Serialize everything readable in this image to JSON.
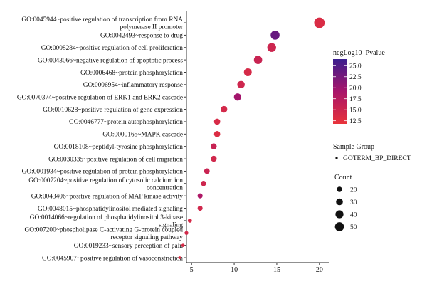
{
  "chart_data": {
    "type": "scatter",
    "xlabel": "",
    "ylabel": "",
    "xlim": [
      4.4,
      21.1
    ],
    "xticks": [
      5,
      10,
      15,
      20
    ],
    "terms": [
      {
        "label": [
          "GO:0045944~positive regulation of transcription from RNA",
          "polymerase II promoter"
        ],
        "count": 50,
        "neglog10_pvalue": 13.5
      },
      {
        "label": [
          "GO:0042493~response to drug"
        ],
        "count": 37,
        "neglog10_pvalue": 23.5
      },
      {
        "label": [
          "GO:0008284~positive regulation of cell proliferation"
        ],
        "count": 36,
        "neglog10_pvalue": 15.0
      },
      {
        "label": [
          "GO:0043066~negative regulation of apoptotic process"
        ],
        "count": 32,
        "neglog10_pvalue": 15.5
      },
      {
        "label": [
          "GO:0006468~protein phosphorylation"
        ],
        "count": 29,
        "neglog10_pvalue": 14.0
      },
      {
        "label": [
          "GO:0006954~inflammatory response"
        ],
        "count": 27,
        "neglog10_pvalue": 14.8
      },
      {
        "label": [
          "GO:0070374~positive regulation of ERK1 and ERK2 cascade"
        ],
        "count": 26,
        "neglog10_pvalue": 19.5
      },
      {
        "label": [
          "GO:0010628~positive regulation of gene expression"
        ],
        "count": 22,
        "neglog10_pvalue": 14.2
      },
      {
        "label": [
          "GO:0046777~protein autophosphorylation"
        ],
        "count": 20,
        "neglog10_pvalue": 13.8
      },
      {
        "label": [
          "GO:0000165~MAPK cascade"
        ],
        "count": 20,
        "neglog10_pvalue": 13.2
      },
      {
        "label": [
          "GO:0018108~peptidyl-tyrosine phosphorylation"
        ],
        "count": 19,
        "neglog10_pvalue": 15.6
      },
      {
        "label": [
          "GO:0030335~positive regulation of cell migration"
        ],
        "count": 19,
        "neglog10_pvalue": 14.6
      },
      {
        "label": [
          "GO:0001934~positive regulation of protein phosphorylation"
        ],
        "count": 17,
        "neglog10_pvalue": 15.4
      },
      {
        "label": [
          "GO:0007204~positive regulation of cytosolic calcium ion",
          "concentration"
        ],
        "count": 16,
        "neglog10_pvalue": 14.9
      },
      {
        "label": [
          "GO:0043406~positive regulation of MAP kinase activity"
        ],
        "count": 15,
        "neglog10_pvalue": 18.5
      },
      {
        "label": [
          "GO:0048015~phosphatidylinositol mediated signaling"
        ],
        "count": 15,
        "neglog10_pvalue": 14.5
      },
      {
        "label": [
          "GO:0014066~regulation of phosphatidylinositol 3-kinase",
          "signaling"
        ],
        "count": 12,
        "neglog10_pvalue": 14.0
      },
      {
        "label": [
          "GO:007200~phospholipase C-activating G-protein coupled",
          "receptor signaling pathway"
        ],
        "count": 11,
        "neglog10_pvalue": 14.3
      },
      {
        "label": [
          "GO:0019233~sensory perception of pain"
        ],
        "count": 10,
        "neglog10_pvalue": 13.8
      },
      {
        "label": [
          "GO:0045907~positive regulation of vasoconstriction"
        ],
        "count": 9,
        "neglog10_pvalue": 13.2
      }
    ],
    "legend": {
      "placement": "right",
      "color": {
        "title": "negLog10_Pvalue",
        "ticks": [
          "25.0",
          "22.5",
          "20.0",
          "17.5",
          "15.0",
          "12.5"
        ],
        "tick_values": [
          25.0,
          22.5,
          20.0,
          17.5,
          15.0,
          12.5
        ],
        "range": [
          11.8,
          26.5
        ],
        "color_low": "#e8333a",
        "color_mid": "#a8156a",
        "color_high": "#3a1e8e"
      },
      "group": {
        "title": "Sample Group",
        "entries": [
          "GOTERM_BP_DIRECT"
        ]
      },
      "size": {
        "title": "Count",
        "labels": [
          "20",
          "30",
          "40",
          "50"
        ],
        "values": [
          20,
          30,
          40,
          50
        ]
      }
    }
  }
}
